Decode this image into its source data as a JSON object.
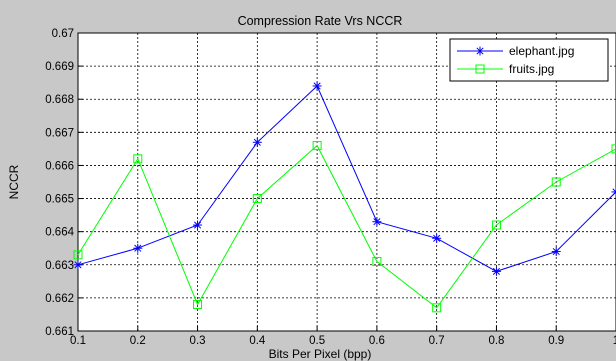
{
  "chart_data": {
    "type": "line",
    "title": "Compression Rate Vrs NCCR",
    "xlabel": "Bits Per Pixel (bpp)",
    "ylabel": "NCCR",
    "x": [
      0.1,
      0.2,
      0.3,
      0.4,
      0.5,
      0.6,
      0.7,
      0.8,
      0.9,
      1
    ],
    "xlim": [
      0.1,
      1
    ],
    "ylim": [
      0.661,
      0.67
    ],
    "xticks": [
      "0.1",
      "0.2",
      "0.3",
      "0.4",
      "0.5",
      "0.6",
      "0.7",
      "0.8",
      "0.9",
      "1"
    ],
    "yticks": [
      "0.661",
      "0.662",
      "0.663",
      "0.664",
      "0.665",
      "0.666",
      "0.667",
      "0.668",
      "0.669",
      "0.67"
    ],
    "grid": true,
    "legend_position": "top-right",
    "series": [
      {
        "name": "elephant.jpg",
        "color": "#0000ff",
        "marker": "asterisk",
        "values": [
          0.663,
          0.6635,
          0.6642,
          0.6667,
          0.6684,
          0.6643,
          0.6638,
          0.6628,
          0.6634,
          0.6652
        ]
      },
      {
        "name": "fruits.jpg",
        "color": "#00ff00",
        "marker": "square",
        "values": [
          0.6633,
          0.6662,
          0.6618,
          0.665,
          0.6666,
          0.6631,
          0.6617,
          0.6642,
          0.6655,
          0.6665
        ]
      }
    ]
  }
}
